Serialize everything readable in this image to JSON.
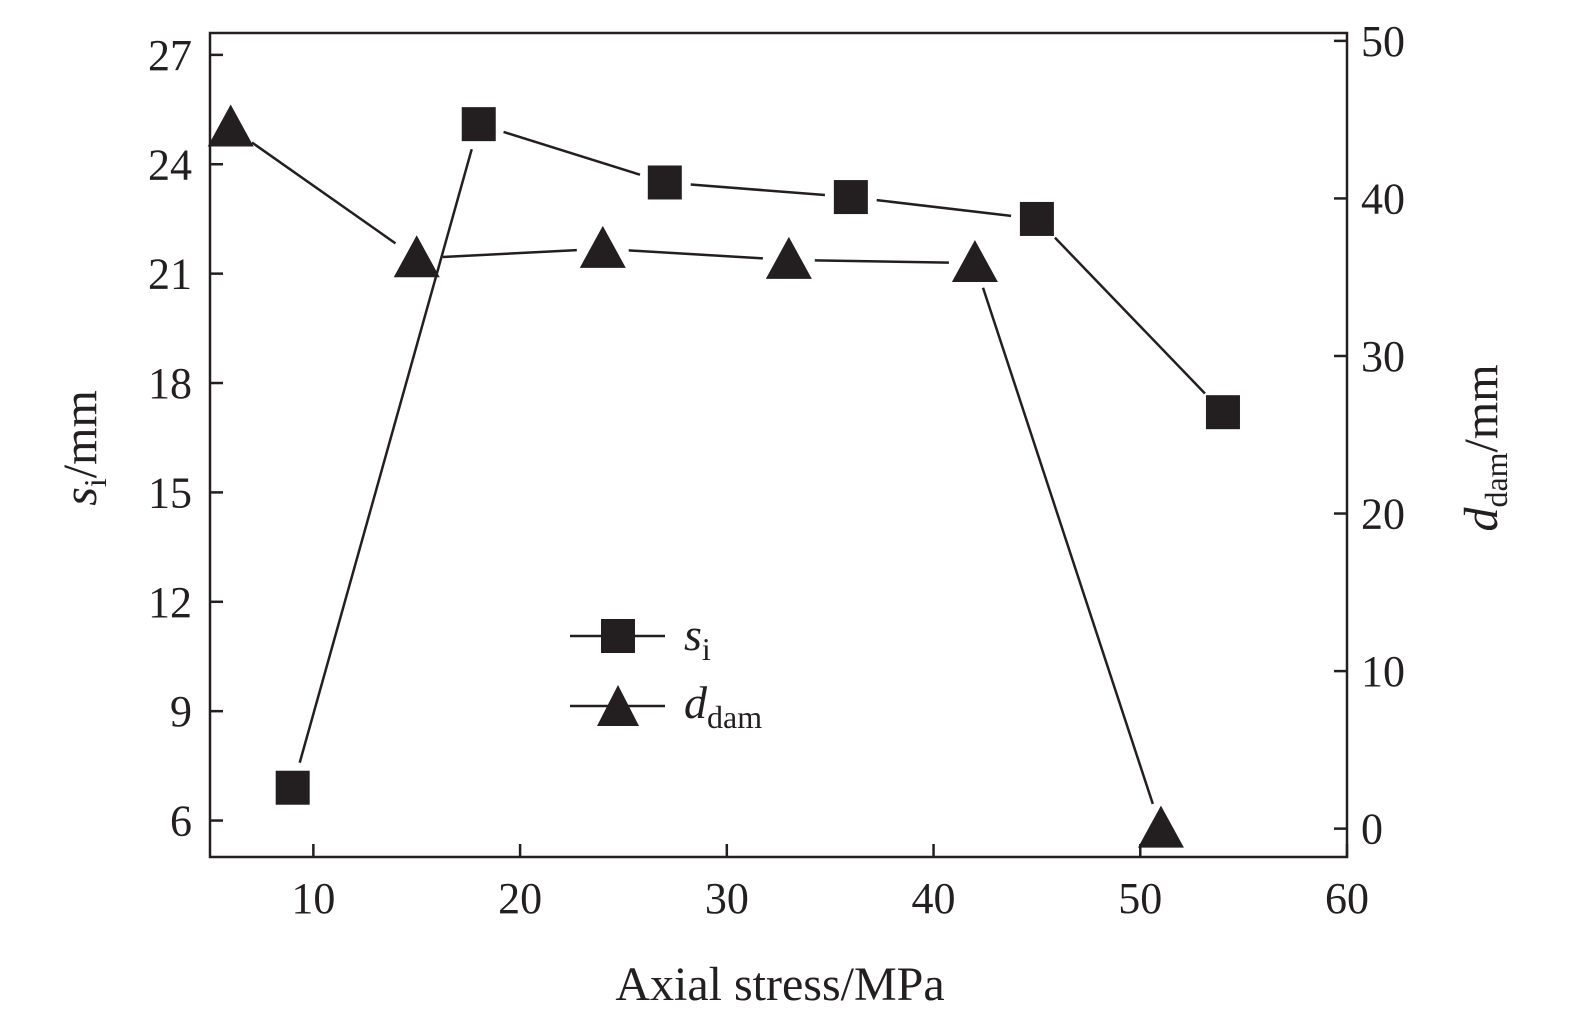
{
  "chart_data": {
    "type": "line",
    "xlabel": "Axial stress/MPa",
    "ylabel_left": {
      "symbol": "s",
      "subscript": "i",
      "unit": "/mm"
    },
    "ylabel_right": {
      "symbol": "d",
      "subscript": "dam",
      "unit": "/mm"
    },
    "xlim": [
      5,
      60
    ],
    "ylim_left": [
      5,
      27.6
    ],
    "ylim_right": [
      -1.8,
      50.5
    ],
    "x_ticks": [
      "10",
      "20",
      "30",
      "40",
      "50",
      "60"
    ],
    "y_left_ticks": [
      "6",
      "9",
      "12",
      "15",
      "18",
      "21",
      "24",
      "27"
    ],
    "y_right_ticks": [
      "0",
      "10",
      "20",
      "30",
      "40",
      "50"
    ],
    "grid": false,
    "legend_position": "center-left",
    "series": [
      {
        "symbol": "s",
        "subscript": "i",
        "axis": "left",
        "marker": "square",
        "color": "#231f20",
        "x": [
          9,
          18,
          27,
          36,
          45,
          54
        ],
        "y": [
          6.9,
          25.1,
          23.5,
          23.1,
          22.5,
          17.2
        ]
      },
      {
        "symbol": "d",
        "subscript": "dam",
        "axis": "right",
        "marker": "triangle",
        "color": "#231f20",
        "x": [
          6,
          15,
          24,
          33,
          42,
          51
        ],
        "y": [
          44.5,
          36.2,
          36.8,
          36.1,
          35.9,
          0.0
        ]
      }
    ]
  }
}
